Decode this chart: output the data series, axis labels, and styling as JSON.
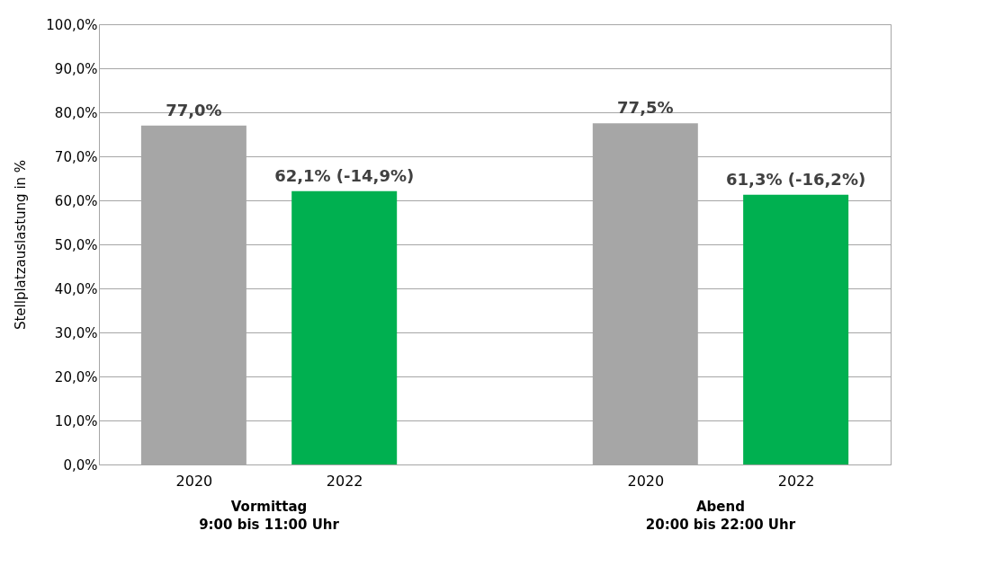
{
  "chart_data": {
    "type": "bar",
    "ylabel": "Stellplatzauslastung in %",
    "categories": [
      "2020",
      "2022",
      "2020",
      "2022"
    ],
    "values": [
      77.0,
      62.1,
      77.5,
      61.3
    ],
    "colors": [
      "#a6a6a6",
      "#00b050",
      "#a6a6a6",
      "#00b050"
    ],
    "value_labels": [
      "77,0%",
      "62,1% (-14,9%)",
      "77,5%",
      "61,3%  (-16,2%)"
    ],
    "ylim": [
      0,
      100
    ],
    "yticks": [
      {
        "value": 0,
        "label": "0,0%"
      },
      {
        "value": 10,
        "label": "10,0%"
      },
      {
        "value": 20,
        "label": "20,0%"
      },
      {
        "value": 30,
        "label": "30,0%"
      },
      {
        "value": 40,
        "label": "40,0%"
      },
      {
        "value": 50,
        "label": "50,0%"
      },
      {
        "value": 60,
        "label": "60,0%"
      },
      {
        "value": 70,
        "label": "70,0%"
      },
      {
        "value": 80,
        "label": "80,0%"
      },
      {
        "value": 90,
        "label": "90,0%"
      },
      {
        "value": 100,
        "label": "100,0%"
      }
    ],
    "grid": "y",
    "annotations": [
      "Vormittag\n9:00 bis 11:00 Uhr",
      "Abend\n20:00 bis 22:00 Uhr"
    ]
  }
}
